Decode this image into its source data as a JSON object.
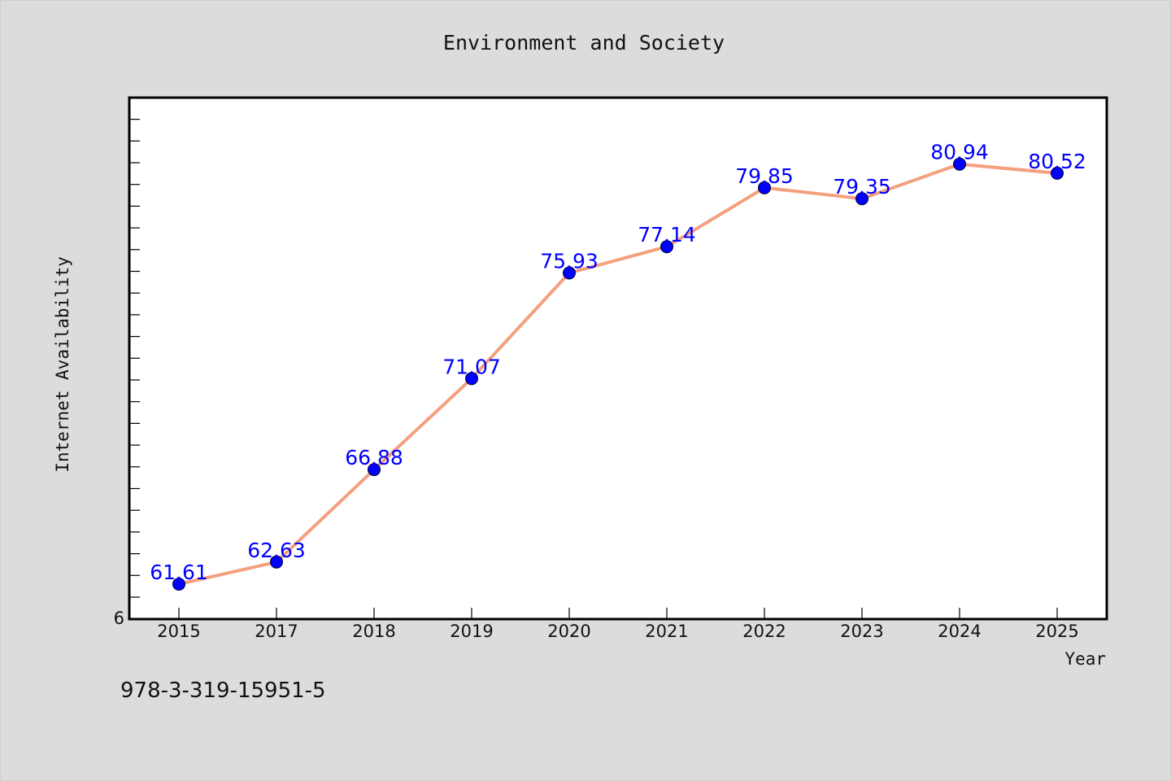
{
  "footer": {
    "identifier": "978-3-319-15951-5"
  },
  "chart_data": {
    "type": "line",
    "title": "Environment and Society",
    "xlabel": "Year",
    "ylabel": "Internet Availability",
    "categories": [
      "2015",
      "2017",
      "2018",
      "2019",
      "2020",
      "2021",
      "2022",
      "2023",
      "2024",
      "2025"
    ],
    "series": [
      {
        "values": [
          61.61,
          62.63,
          66.88,
          71.07,
          75.93,
          77.14,
          79.85,
          79.35,
          80.94,
          80.52
        ],
        "labels": [
          "61.61",
          "62.63",
          "66.88",
          "71.07",
          "75.93",
          "77.14",
          "79.85",
          "79.35",
          "80.94",
          "80.52"
        ],
        "line_color": "#f4a07e",
        "marker_color": "#0000ff"
      }
    ],
    "y_tick_labels": [
      "6"
    ],
    "ylim": [
      60,
      84
    ],
    "grid": false,
    "legend": "none"
  }
}
